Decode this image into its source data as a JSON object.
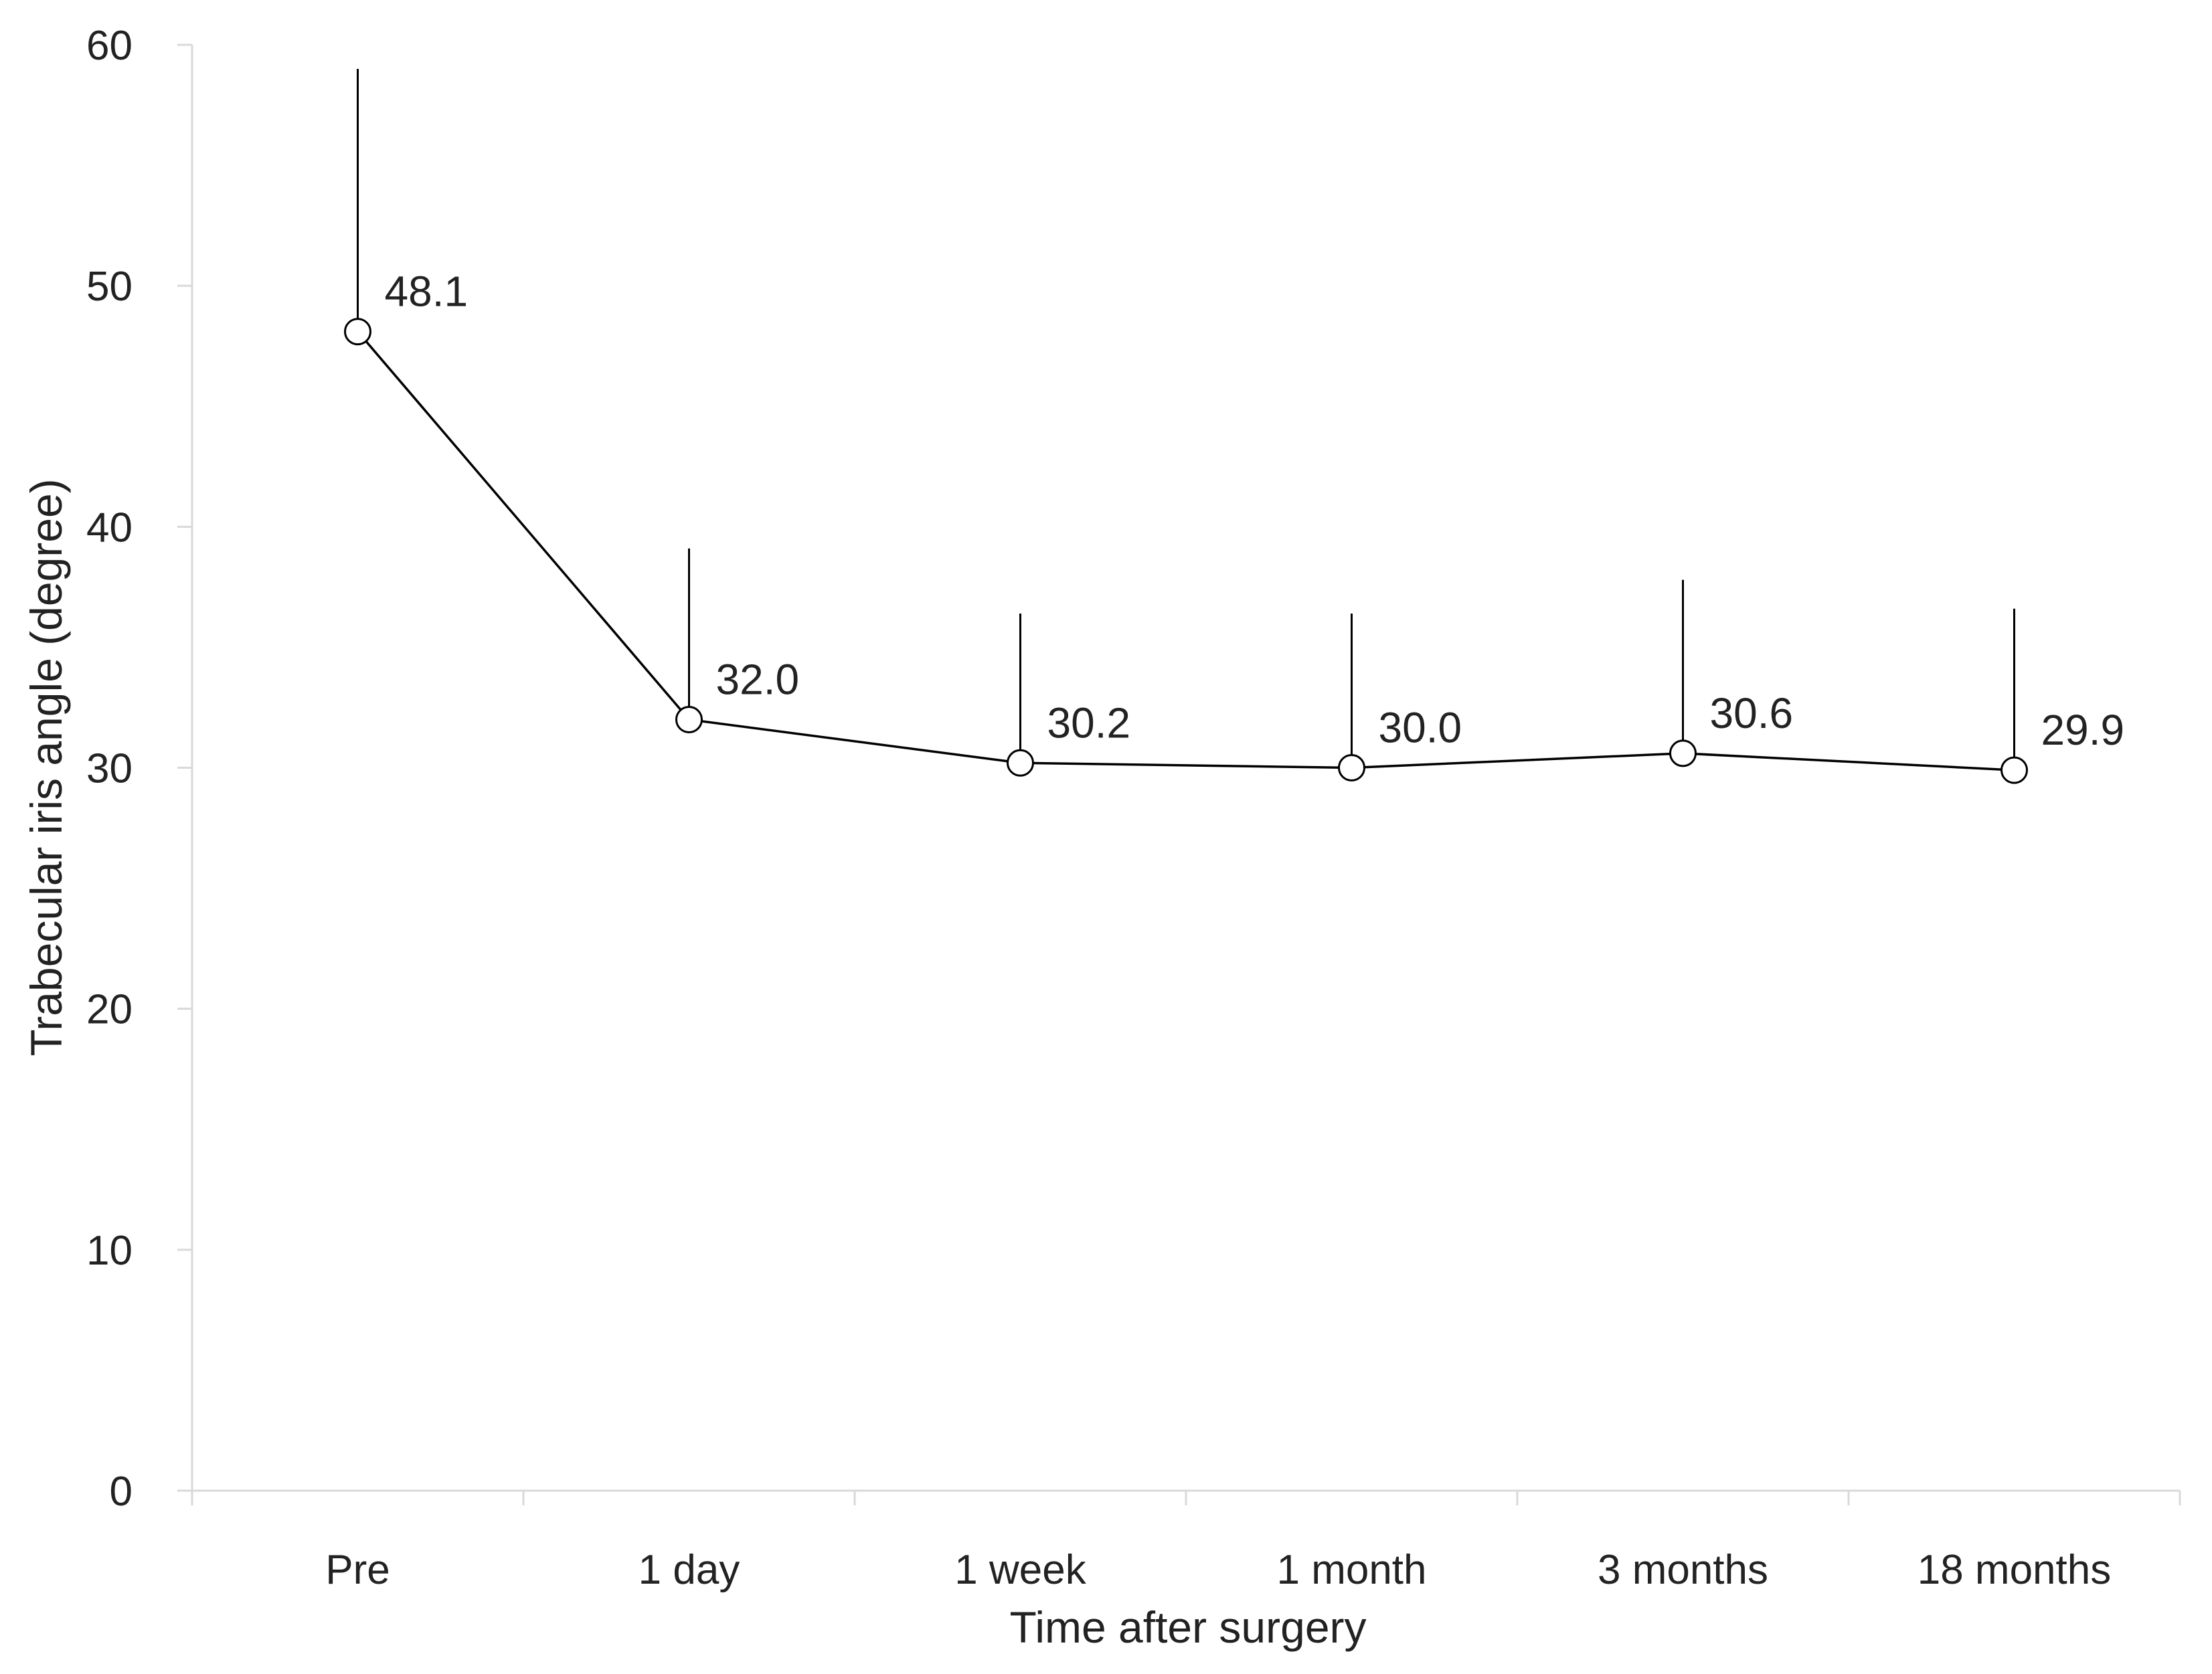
{
  "chart_data": {
    "type": "line",
    "title": "",
    "xlabel": "Time after surgery",
    "ylabel": "Trabecular iris angle (degree)",
    "ylim": [
      0,
      60
    ],
    "yticks": [
      0,
      10,
      20,
      30,
      40,
      50,
      60
    ],
    "categories": [
      "Pre",
      "1 day",
      "1 week",
      "1 month",
      "3 months",
      "18 months"
    ],
    "series": [
      {
        "values": [
          48.1,
          32.0,
          30.2,
          30.0,
          30.6,
          29.9
        ],
        "error_upper": [
          59.0,
          39.1,
          36.4,
          36.4,
          37.8,
          36.6
        ]
      }
    ],
    "data_labels": [
      "48.1",
      "32.0",
      "30.2",
      "30.0",
      "30.6",
      "29.9"
    ],
    "grid": false,
    "legend": "none",
    "colors": {
      "line": "#000000",
      "marker_fill": "#ffffff",
      "axis": "#d9d9d9",
      "text": "#222222"
    }
  }
}
